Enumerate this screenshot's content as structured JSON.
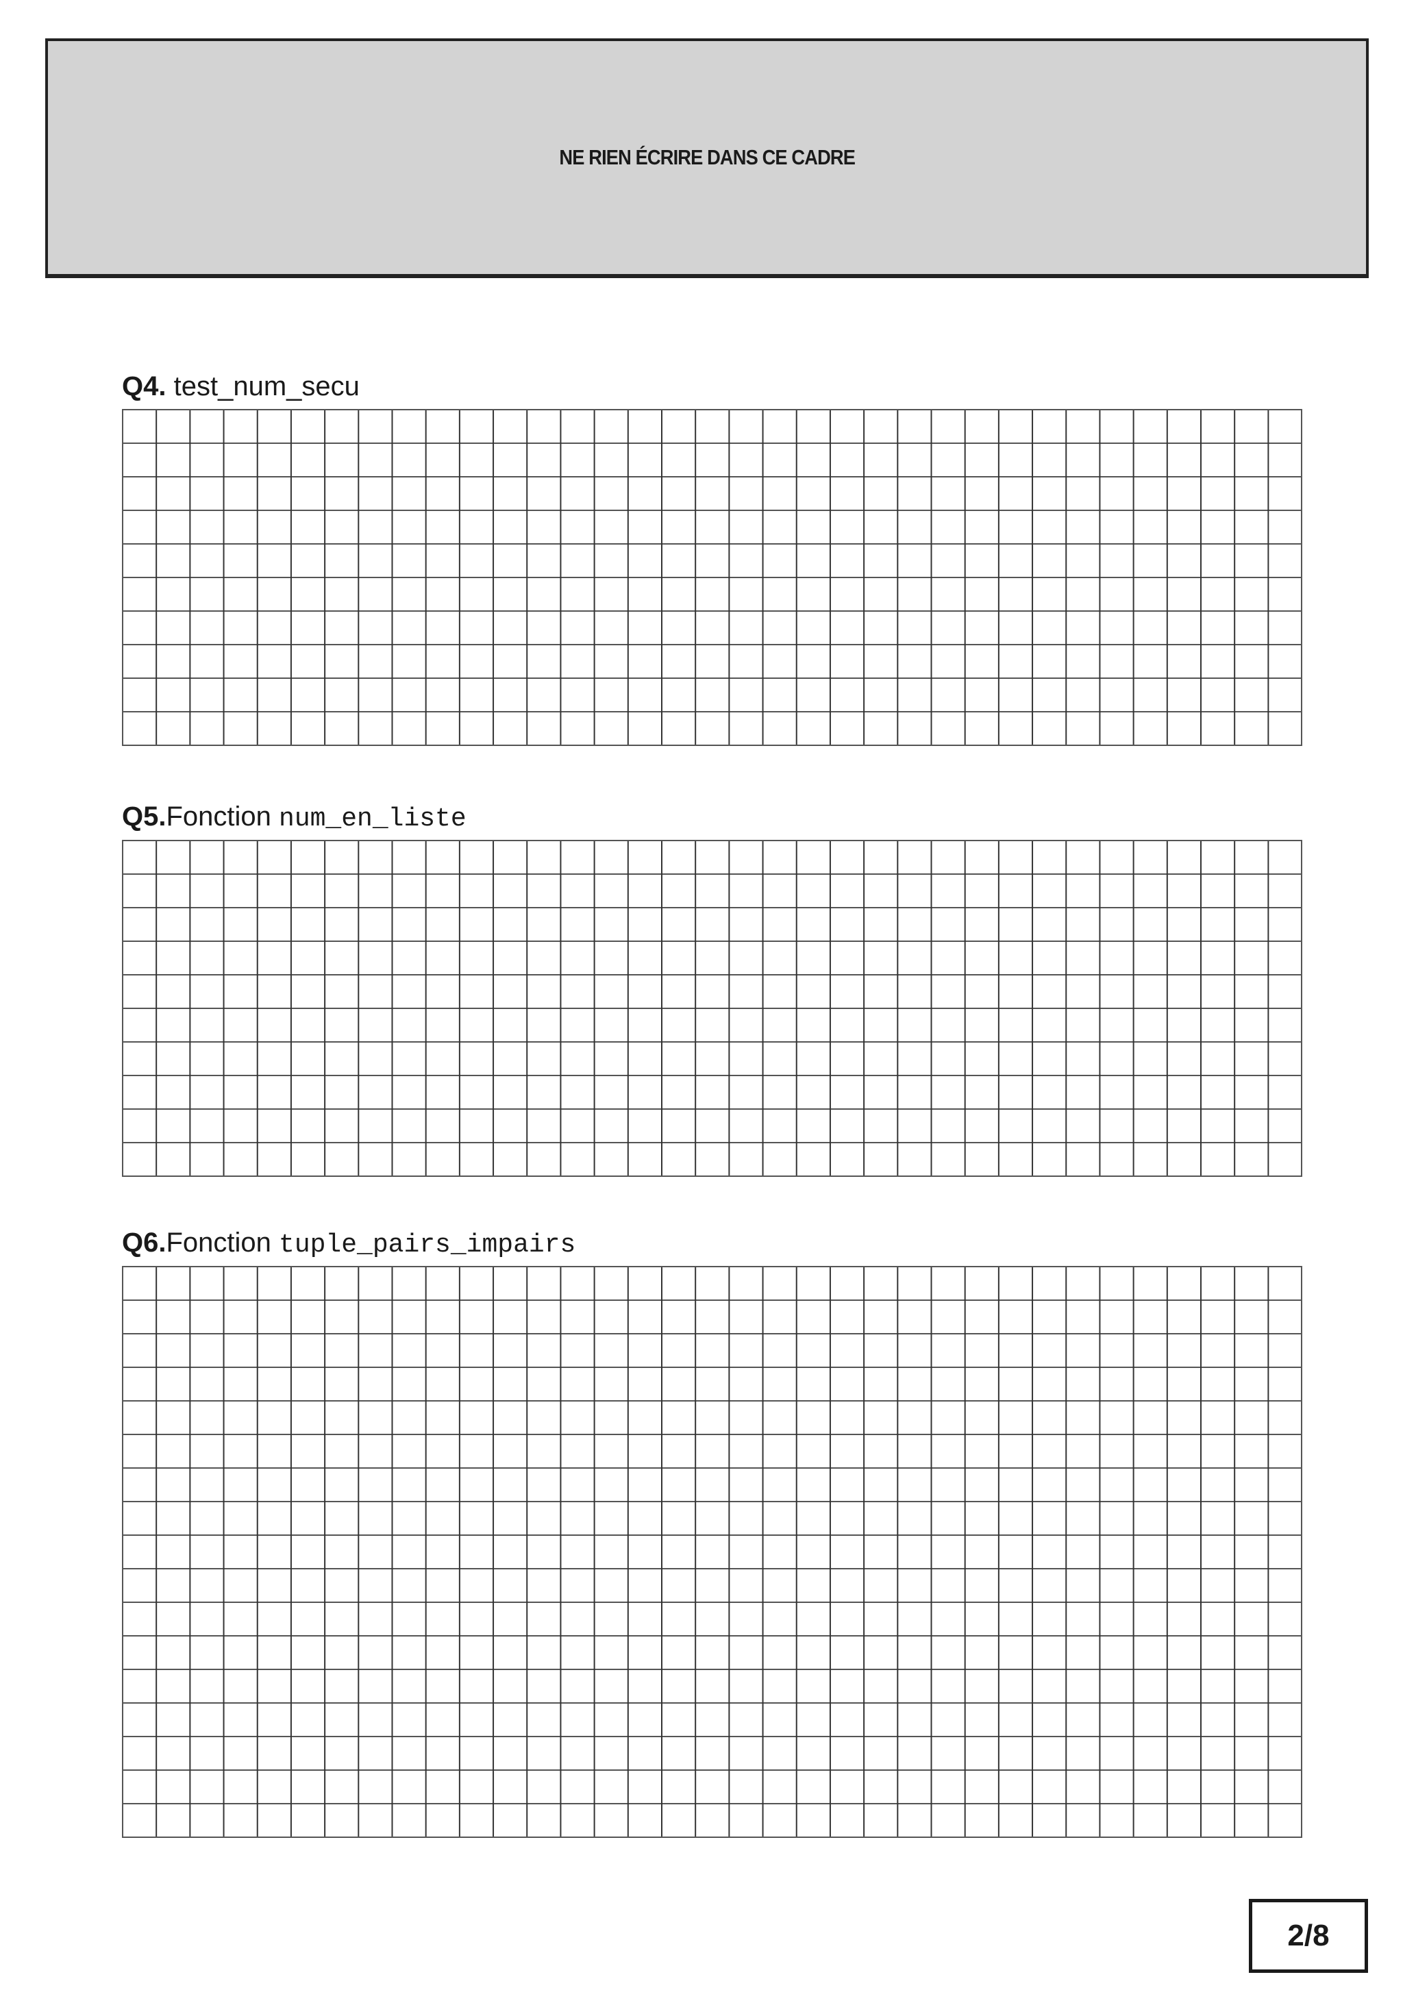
{
  "header": {
    "notice": "NE RIEN ÉCRIRE DANS CE CADRE"
  },
  "questions": [
    {
      "number": "Q4.",
      "text": "test_num_secu",
      "code": "",
      "rows": 10,
      "cols": 35
    },
    {
      "number": "Q5.",
      "text": "Fonction ",
      "code": "num_en_liste",
      "rows": 10,
      "cols": 35
    },
    {
      "number": "Q6.",
      "text": "Fonction ",
      "code": "tuple_pairs_impairs",
      "rows": 17,
      "cols": 35
    }
  ],
  "footer": {
    "page": "2/8"
  }
}
